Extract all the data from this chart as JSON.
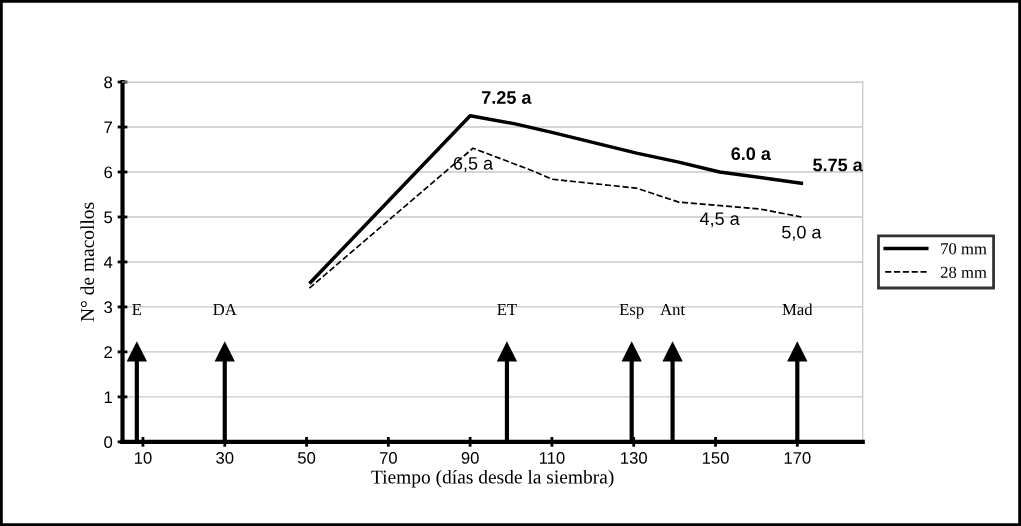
{
  "chart_data": {
    "type": "line",
    "xlabel": "Tiempo (días desde la siembra)",
    "ylabel": "N° de macollos",
    "xlim": [
      5,
      186
    ],
    "xticks": [
      10,
      30,
      50,
      70,
      90,
      110,
      130,
      150,
      170
    ],
    "ylim": [
      0,
      8
    ],
    "yticks": [
      0,
      1,
      2,
      3,
      4,
      5,
      6,
      7,
      8
    ],
    "grid": "y",
    "legend": "right",
    "series": [
      {
        "name": "70 mm",
        "color": "#000000",
        "line_style": "solid",
        "x": [
          51,
          90,
          101,
          110.5,
          130.7,
          141,
          151,
          171
        ],
        "values": [
          3.55,
          7.25,
          7.07,
          6.87,
          6.42,
          6.22,
          6.0,
          5.75
        ]
      },
      {
        "name": "28 mm",
        "color": "#000000",
        "line_style": "dashed",
        "x": [
          50.7,
          71,
          90.7,
          106,
          110,
          130.7,
          141,
          160.7,
          171
        ],
        "values": [
          3.42,
          5.0,
          6.53,
          6.0,
          5.84,
          5.64,
          5.33,
          5.18,
          5.0
        ]
      }
    ],
    "annotations": [
      {
        "text": "7.25 a",
        "x": 90,
        "y": 7.25
      },
      {
        "text": "6.0 a",
        "x": 151,
        "y": 6.0
      },
      {
        "text": "5.75 a",
        "x": 171,
        "y": 5.75
      },
      {
        "text": "6,5 a",
        "x": 90.7,
        "y": 6.53
      },
      {
        "text": "4,5 a",
        "x": 151,
        "y": 5.3
      },
      {
        "text": "5,0 a",
        "x": 171,
        "y": 5.0
      }
    ],
    "ref_lines": [
      {
        "axis": "x",
        "value": 8.5,
        "label": "E"
      },
      {
        "axis": "x",
        "value": 30,
        "label": "DA"
      },
      {
        "axis": "x",
        "value": 99,
        "label": "ET"
      },
      {
        "axis": "x",
        "value": 129.5,
        "label": "Esp"
      },
      {
        "axis": "x",
        "value": 139.5,
        "label": "Ant"
      },
      {
        "axis": "x",
        "value": 170,
        "label": "Mad"
      }
    ]
  }
}
